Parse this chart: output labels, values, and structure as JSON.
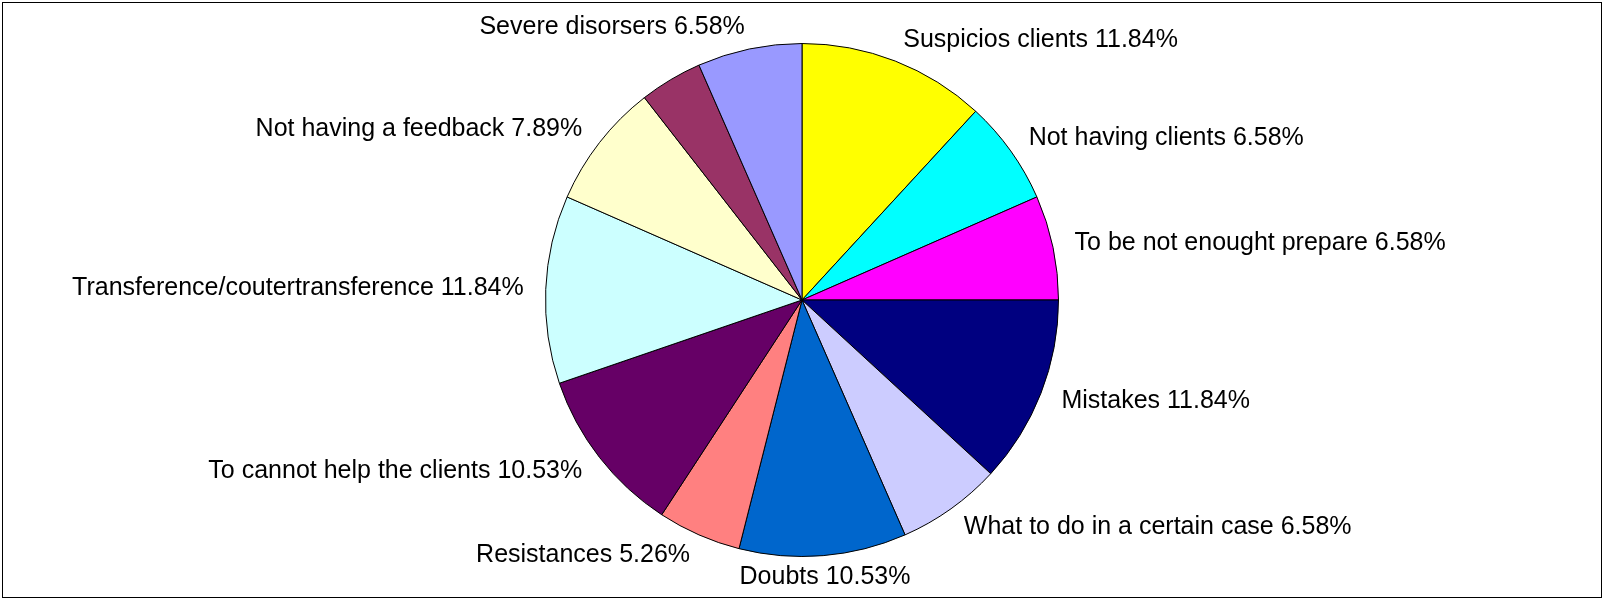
{
  "chart_data": {
    "type": "pie",
    "categories": [
      "Suspicios clients",
      "Not having clients",
      "To be not enought prepare",
      "Mistakes",
      "What to do in a certain case",
      "Doubts",
      "Resistances",
      "To cannot help the clients",
      "Transference/coutertransference",
      "Not having a feedback",
      null,
      "Severe disorsers"
    ],
    "values": [
      11.84,
      6.58,
      6.58,
      11.84,
      6.58,
      10.53,
      5.26,
      10.53,
      11.84,
      7.89,
      3.95,
      6.58
    ],
    "value_labels": [
      "11.84%",
      "6.58%",
      "6.58%",
      "11.84%",
      "6.58%",
      "10.53%",
      "5.26%",
      "10.53%",
      "11.84%",
      "7.89%",
      null,
      "6.58%"
    ],
    "colors": [
      "#ffff00",
      "#00ffff",
      "#ff00ff",
      "#000080",
      "#ccccff",
      "#0066cc",
      "#ff8080",
      "#660066",
      "#ccffff",
      "#ffffcc",
      "#993366",
      "#9999ff"
    ],
    "legend": false
  }
}
